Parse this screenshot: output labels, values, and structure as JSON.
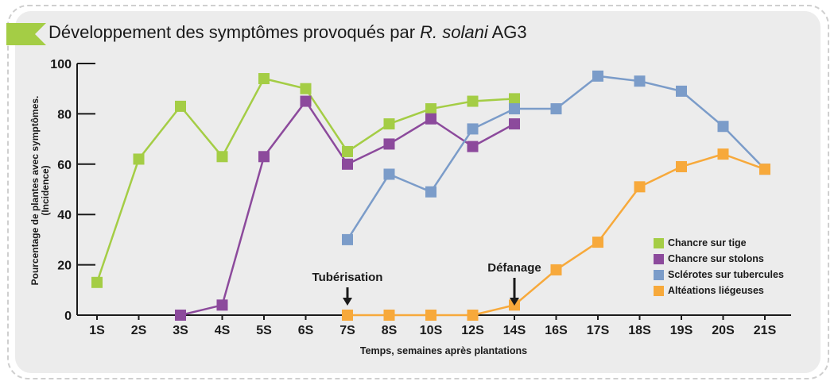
{
  "colors": {
    "green": "#a4cd45",
    "purple": "#8c4a9c",
    "blue": "#7b9cc9",
    "orange": "#f7a93b",
    "axis": "#1a1a1a",
    "flag": "#a4cd45"
  },
  "header": {
    "title_prefix": "Développement des symptômes provoqués par ",
    "title_italic": "R. solani",
    "title_suffix": " AG3"
  },
  "chart_data": {
    "type": "line",
    "title": "Développement des symptômes provoqués par R. solani AG3",
    "xlabel": "Temps, semaines après plantations",
    "ylabel": "Pourcentage de plantes avec symptômes. (Incidence)",
    "ylabel_lines": [
      "Pourcentage de plantes avec symptômes.",
      "(Incidence)"
    ],
    "categories": [
      "1S",
      "2S",
      "3S",
      "4S",
      "5S",
      "6S",
      "7S",
      "8S",
      "10S",
      "12S",
      "14S",
      "16S",
      "17S",
      "18S",
      "19S",
      "20S",
      "21S"
    ],
    "ylim": [
      0,
      100
    ],
    "yticks": [
      0,
      20,
      40,
      60,
      80,
      100
    ],
    "grid": false,
    "legend_position": "bottom-right",
    "series": [
      {
        "name": "Chancre sur tige",
        "color": "#a4cd45",
        "values": [
          13,
          62,
          83,
          63,
          94,
          90,
          65,
          76,
          82,
          85,
          86,
          null,
          null,
          null,
          null,
          null,
          null
        ]
      },
      {
        "name": "Chancre sur stolons",
        "color": "#8c4a9c",
        "values": [
          null,
          null,
          0,
          4,
          63,
          85,
          60,
          68,
          78,
          67,
          76,
          null,
          null,
          null,
          null,
          null,
          null
        ]
      },
      {
        "name": "Sclérotes sur tubercules",
        "color": "#7b9cc9",
        "values": [
          null,
          null,
          null,
          null,
          null,
          null,
          30,
          56,
          49,
          74,
          82,
          82,
          95,
          93,
          89,
          75,
          58
        ]
      },
      {
        "name": "Altéations liégeuses",
        "color": "#f7a93b",
        "values": [
          null,
          null,
          null,
          null,
          null,
          null,
          0,
          0,
          0,
          0,
          4,
          18,
          29,
          51,
          59,
          64,
          58
        ]
      }
    ],
    "annotations": [
      {
        "text": "Tubérisation",
        "category": "7S"
      },
      {
        "text": "Défanage",
        "category": "14S"
      }
    ]
  }
}
